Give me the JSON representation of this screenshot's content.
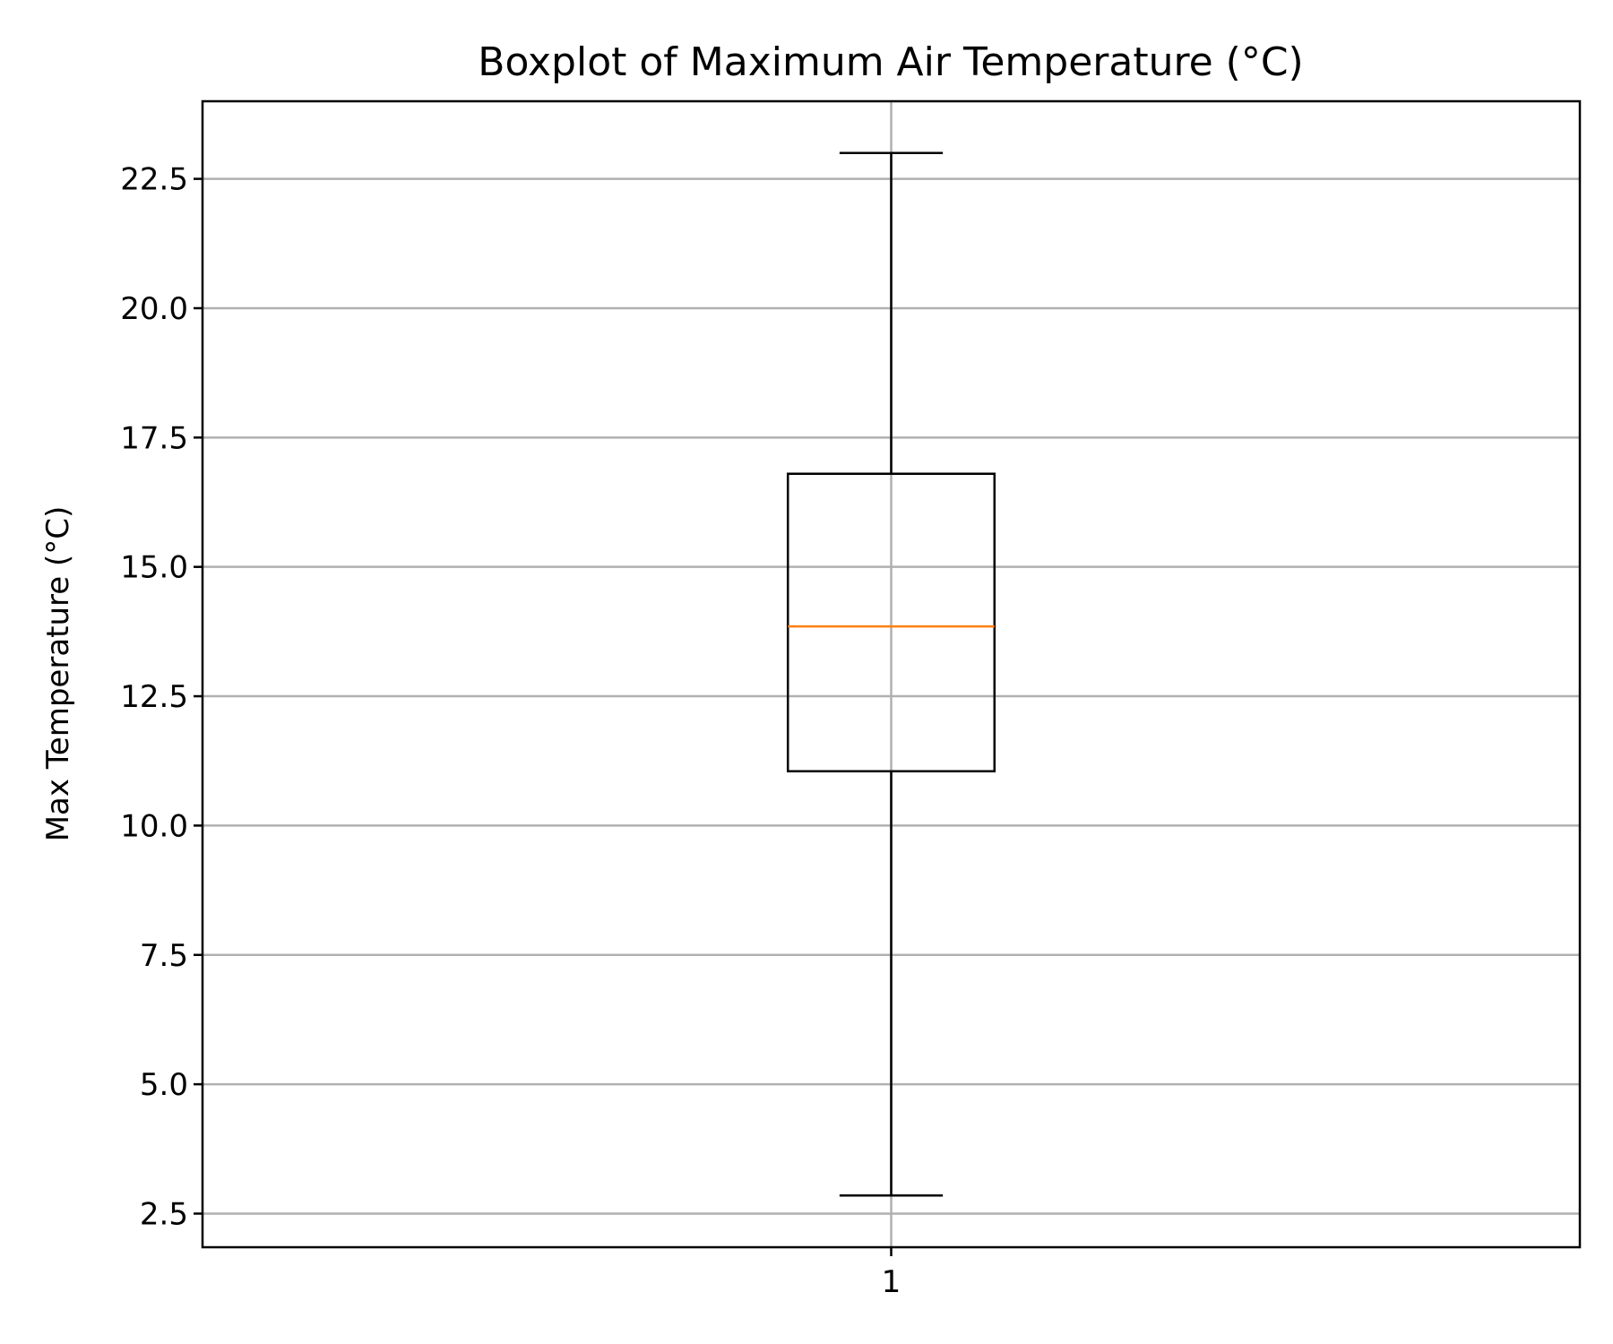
{
  "chart_data": {
    "type": "boxplot",
    "title": "Boxplot of Maximum Air Temperature (°C)",
    "xlabel": "",
    "ylabel": "Max Temperature (°C)",
    "categories": [
      "1"
    ],
    "boxes": [
      {
        "label": "1",
        "whisker_low": 2.85,
        "q1": 11.05,
        "median": 13.85,
        "q3": 16.8,
        "whisker_high": 23.0
      }
    ],
    "ylim": [
      1.85,
      24.0
    ],
    "yticks": [
      2.5,
      5.0,
      7.5,
      10.0,
      12.5,
      15.0,
      17.5,
      20.0,
      22.5
    ],
    "ytick_labels": [
      "2.5",
      "5.0",
      "7.5",
      "10.0",
      "12.5",
      "15.0",
      "17.5",
      "20.0",
      "22.5"
    ],
    "grid": true,
    "colors": {
      "box": "#000000",
      "median": "#ff7f0e",
      "grid": "#b0b0b0"
    }
  }
}
